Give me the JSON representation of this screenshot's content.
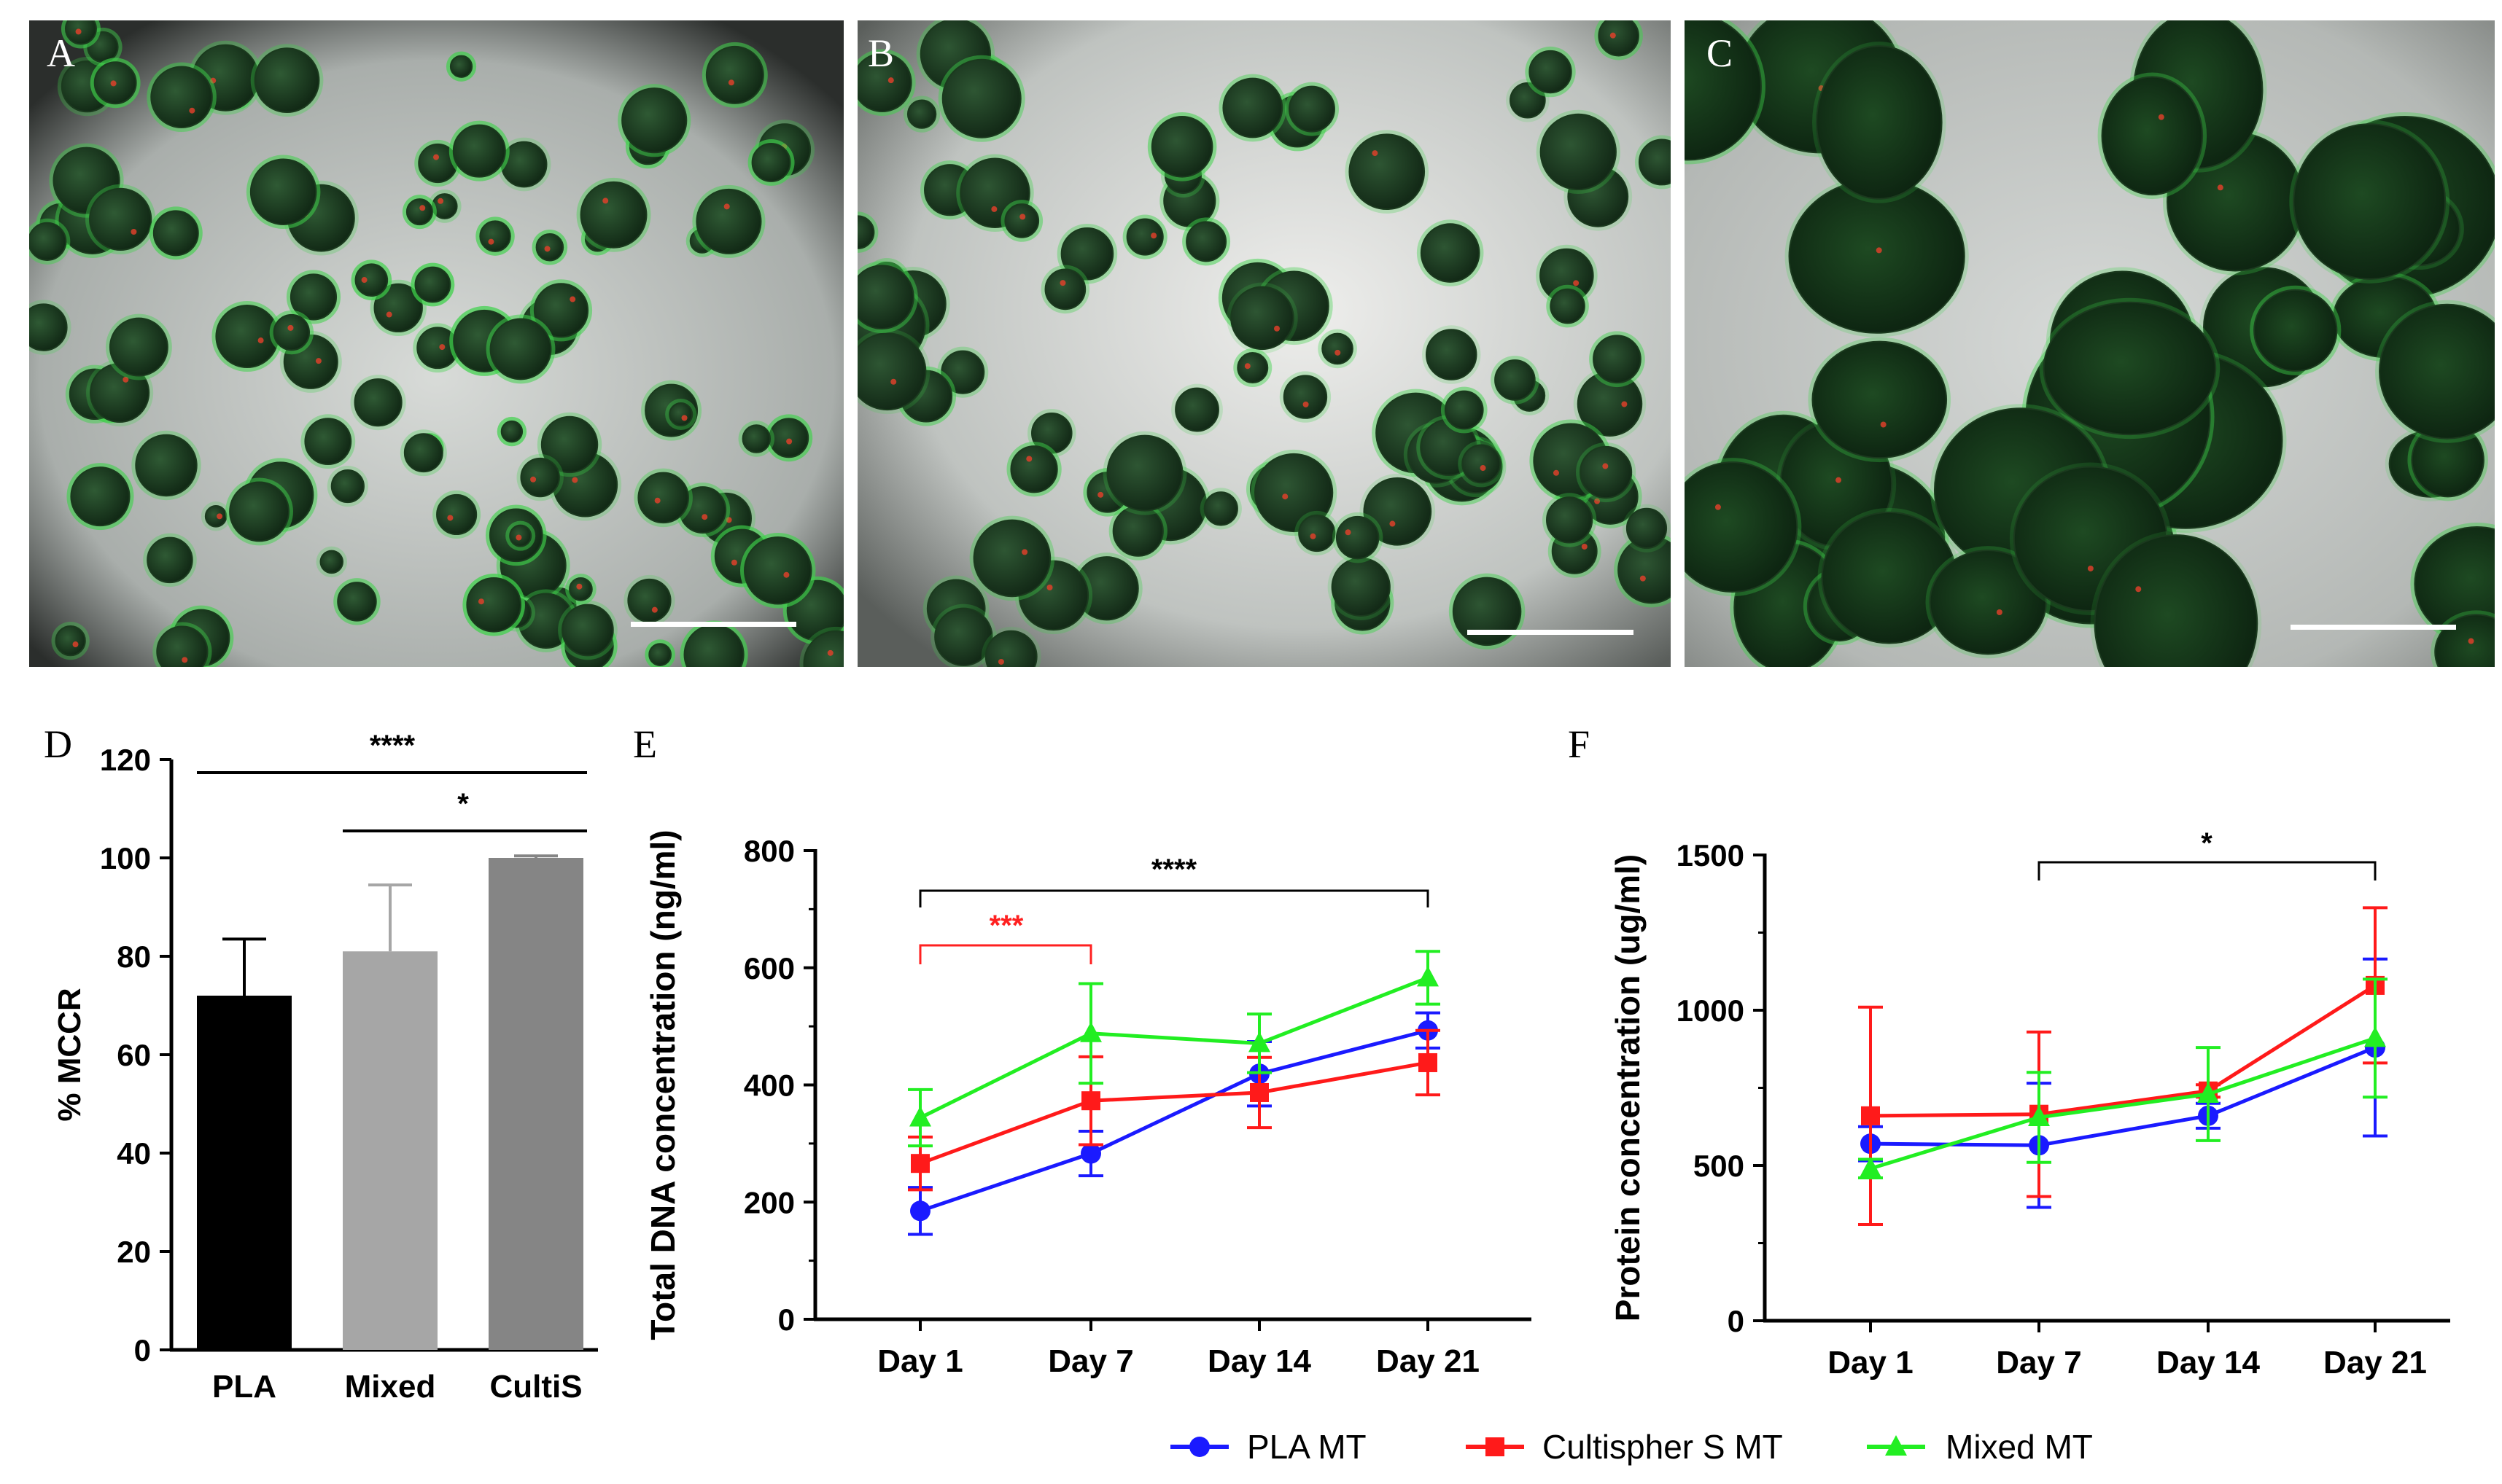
{
  "panels": {
    "A": {
      "label": "A"
    },
    "B": {
      "label": "B"
    },
    "C": {
      "label": "C"
    },
    "D": {
      "label": "D"
    },
    "E": {
      "label": "E"
    },
    "F": {
      "label": "F"
    }
  },
  "colors": {
    "pla": "#1a1aff",
    "cultispher": "#ff1a1a",
    "mixed": "#22ee22",
    "bar_pla": "#000000",
    "bar_mixed": "#a6a6a6",
    "bar_cultis": "#858585",
    "sig_red": "#ff2020"
  },
  "legend": [
    {
      "name": "PLA MT",
      "color": "#1a1aff",
      "marker": "circle"
    },
    {
      "name": "Cultispher S MT",
      "color": "#ff1a1a",
      "marker": "square"
    },
    {
      "name": "Mixed MT",
      "color": "#22ee22",
      "marker": "triangle"
    }
  ],
  "chart_data": [
    {
      "panel": "D",
      "type": "bar",
      "ylabel": "% MCCR",
      "categories": [
        "PLA",
        "Mixed",
        "CultiS"
      ],
      "values": [
        72,
        81,
        100
      ],
      "errors": [
        11.5,
        13.5,
        0.4
      ],
      "ylim": [
        0,
        120
      ],
      "yticks": [
        "0",
        "20",
        "40",
        "60",
        "80",
        "100",
        "120"
      ],
      "significance": [
        {
          "from": "PLA",
          "to": "CultiS",
          "label": "****"
        },
        {
          "from": "Mixed",
          "to": "CultiS",
          "label": "*"
        }
      ]
    },
    {
      "panel": "E",
      "type": "line",
      "ylabel": "Total DNA concentration (ng/ml)",
      "categories": [
        "Day 1",
        "Day 7",
        "Day 14",
        "Day 21"
      ],
      "ylim": [
        0,
        800
      ],
      "yticks": [
        "0",
        "200",
        "400",
        "600",
        "800"
      ],
      "series": [
        {
          "name": "PLA MT",
          "values": [
            185,
            283,
            419,
            493
          ],
          "errors": [
            40,
            38,
            55,
            30
          ]
        },
        {
          "name": "Cultispher S MT",
          "values": [
            266,
            373,
            387,
            438
          ],
          "errors": [
            45,
            75,
            60,
            55
          ]
        },
        {
          "name": "Mixed MT",
          "values": [
            344,
            488,
            471,
            583
          ],
          "errors": [
            48,
            85,
            50,
            45
          ]
        }
      ],
      "significance": [
        {
          "from": "Day 1",
          "to": "Day 21",
          "label": "****",
          "color": "#000000"
        },
        {
          "from": "Day 1",
          "to": "Day 7",
          "label": "***",
          "color": "#ff2020"
        }
      ]
    },
    {
      "panel": "F",
      "type": "line",
      "ylabel": "Protein concentration (ug/ml)",
      "categories": [
        "Day 1",
        "Day 7",
        "Day 14",
        "Day 21"
      ],
      "ylim": [
        0,
        1500
      ],
      "yticks": [
        "0",
        "500",
        "1000",
        "1500"
      ],
      "series": [
        {
          "name": "PLA MT",
          "values": [
            570,
            565,
            660,
            880
          ],
          "errors": [
            55,
            200,
            40,
            285
          ]
        },
        {
          "name": "Cultispher S MT",
          "values": [
            660,
            665,
            740,
            1080
          ],
          "errors": [
            350,
            265,
            20,
            250
          ]
        },
        {
          "name": "Mixed MT",
          "values": [
            490,
            655,
            730,
            910
          ],
          "errors": [
            30,
            145,
            150,
            190
          ]
        }
      ],
      "significance": [
        {
          "from": "Day 7",
          "to": "Day 21",
          "label": "*",
          "color": "#000000"
        }
      ]
    }
  ]
}
